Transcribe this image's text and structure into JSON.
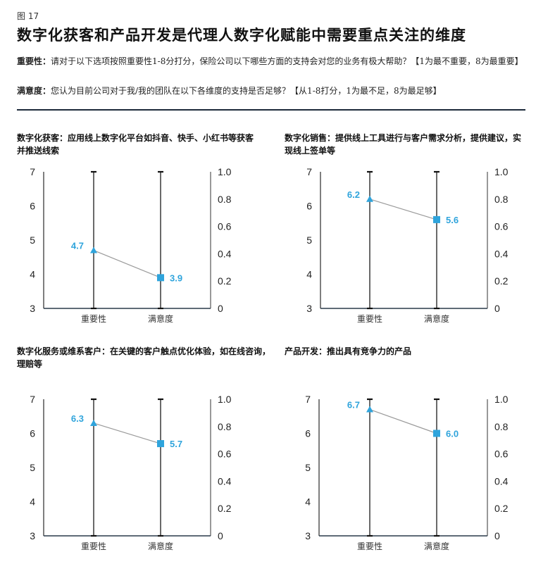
{
  "figure_label": "图 17",
  "title": "数字化获客和产品开发是代理人数字化赋能中需要重点关注的维度",
  "notes": {
    "importance_label": "重要性：",
    "importance_text": "请对于以下选项按照重要性1-8分打分，保险公司以下哪些方面的支持会对您的业务有极大帮助？【1为最不重要，8为最重要】",
    "satisfaction_label": "满意度：",
    "satisfaction_text": "您认为目前公司对于我/我的团队在以下各维度的支持是否足够？【从1-8打分，1为最不足，8为最足够】"
  },
  "colors": {
    "marker": "#2FA4DC",
    "connector": "#9a9a9a",
    "axis": "#2a2a2a",
    "divider": "#1c2a3a"
  },
  "chart_data": [
    {
      "type": "line",
      "title": "数字化获客：应用线上数字化平台如抖音、快手、小红书等获客并推送线索",
      "categories": [
        "重要性",
        "满意度"
      ],
      "values": [
        4.7,
        3.9
      ],
      "value_labels": [
        "4.7",
        "3.9"
      ],
      "markers": [
        "triangle",
        "square"
      ],
      "ylim": [
        3,
        7
      ],
      "yticks": [
        "3",
        "4",
        "5",
        "6",
        "7"
      ],
      "y2lim": [
        0,
        1.0
      ],
      "y2ticks": [
        "0",
        "0.2",
        "0.4",
        "0.6",
        "0.8",
        "1.0"
      ],
      "grid": false,
      "legend": null
    },
    {
      "type": "line",
      "title": "数字化销售：提供线上工具进行与客户需求分析，提供建议，实现线上签单等",
      "categories": [
        "重要性",
        "满意度"
      ],
      "values": [
        6.2,
        5.6
      ],
      "value_labels": [
        "6.2",
        "5.6"
      ],
      "markers": [
        "triangle",
        "square"
      ],
      "ylim": [
        3,
        7
      ],
      "yticks": [
        "3",
        "4",
        "5",
        "6",
        "7"
      ],
      "y2lim": [
        0,
        1.0
      ],
      "y2ticks": [
        "0",
        "0.2",
        "0.4",
        "0.6",
        "0.8",
        "1.0"
      ],
      "grid": false,
      "legend": null
    },
    {
      "type": "line",
      "title": "数字化服务或维系客户：在关键的客户触点优化体验，如在线咨询，理赔等",
      "categories": [
        "重要性",
        "满意度"
      ],
      "values": [
        6.3,
        5.7
      ],
      "value_labels": [
        "6.3",
        "5.7"
      ],
      "markers": [
        "triangle",
        "square"
      ],
      "ylim": [
        3,
        7
      ],
      "yticks": [
        "3",
        "4",
        "5",
        "6",
        "7"
      ],
      "y2lim": [
        0,
        1.0
      ],
      "y2ticks": [
        "0",
        "0.2",
        "0.4",
        "0.6",
        "0.8",
        "1.0"
      ],
      "grid": false,
      "legend": null
    },
    {
      "type": "line",
      "title": "产品开发：推出具有竞争力的产品",
      "categories": [
        "重要性",
        "满意度"
      ],
      "values": [
        6.7,
        6.0
      ],
      "value_labels": [
        "6.7",
        "6.0"
      ],
      "markers": [
        "triangle",
        "square"
      ],
      "ylim": [
        3,
        7
      ],
      "yticks": [
        "3",
        "4",
        "5",
        "6",
        "7"
      ],
      "y2lim": [
        0,
        1.0
      ],
      "y2ticks": [
        "0",
        "0.2",
        "0.4",
        "0.6",
        "0.8",
        "1.0"
      ],
      "grid": false,
      "legend": null
    }
  ]
}
